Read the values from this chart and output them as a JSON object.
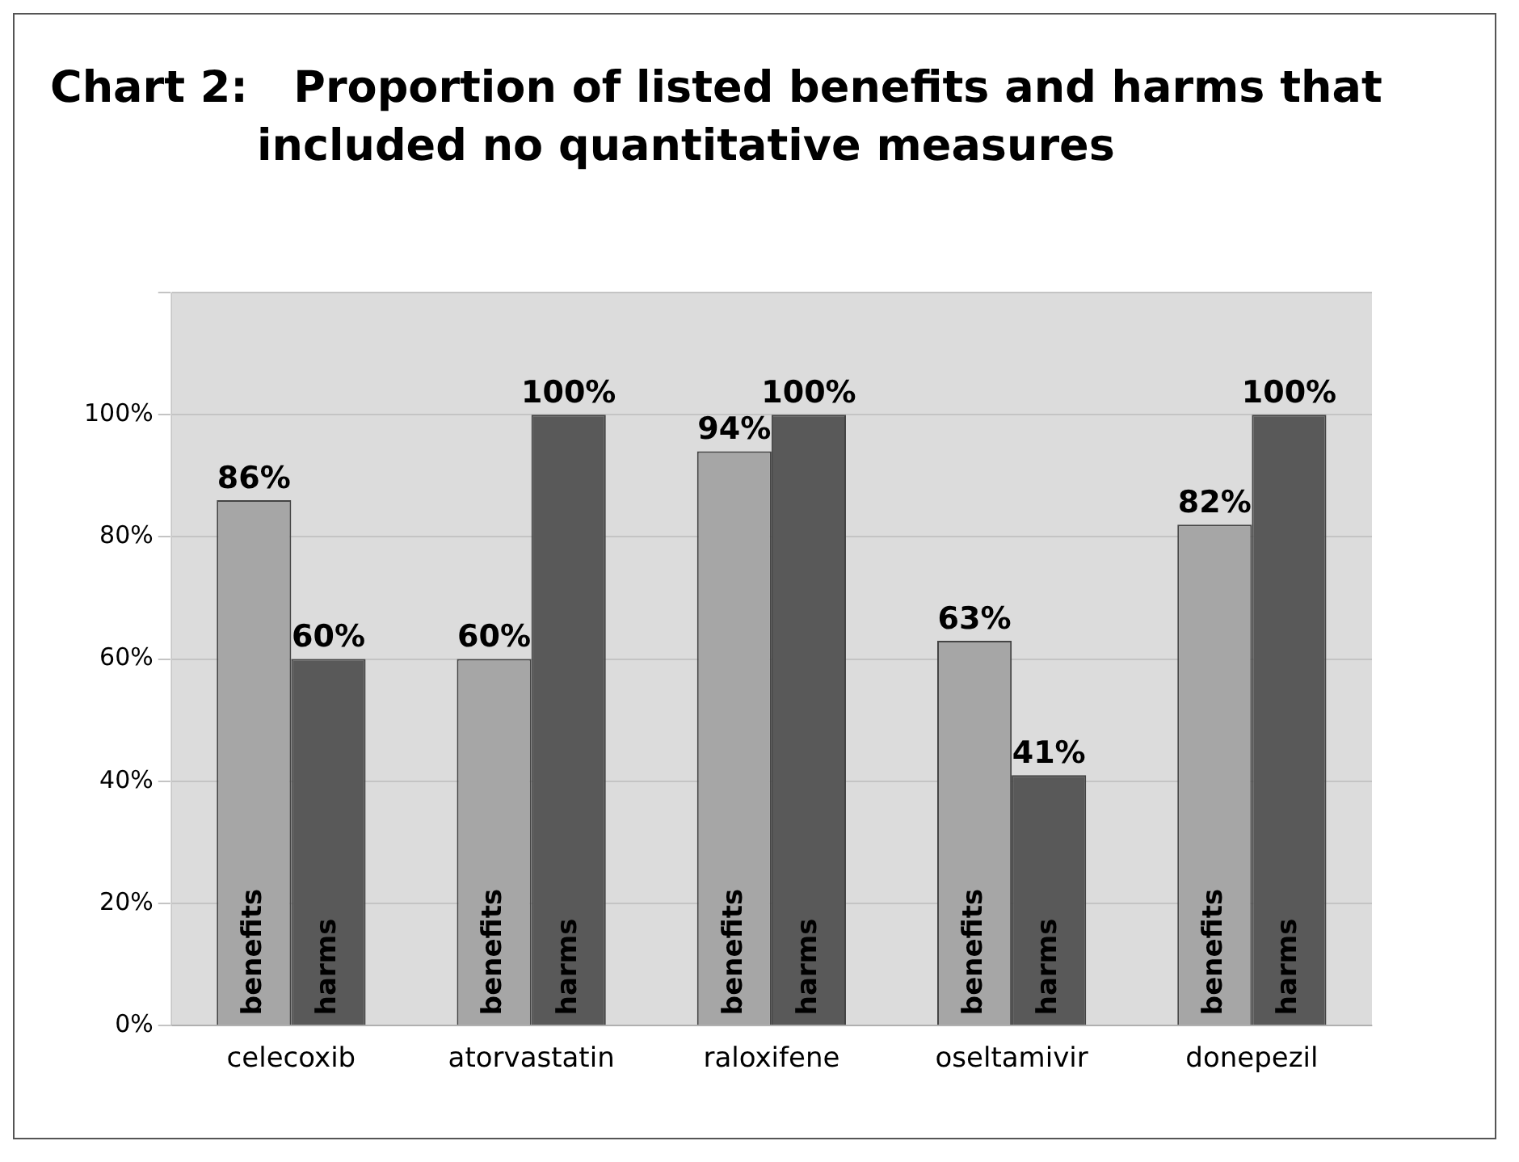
{
  "chart_data": {
    "type": "bar",
    "title": "Chart 2:   Proportion of listed benefits and harms that included no quantitative measures",
    "categories": [
      "celecoxib",
      "atorvastatin",
      "raloxifene",
      "oseltamivir",
      "donepezil"
    ],
    "series": [
      {
        "name": "benefits",
        "color": "#a6a6a6",
        "values": [
          86,
          60,
          94,
          63,
          82
        ],
        "value_labels": [
          "86%",
          "60%",
          "94%",
          "63%",
          "82%"
        ]
      },
      {
        "name": "harms",
        "color": "#595959",
        "values": [
          60,
          100,
          100,
          41,
          100
        ],
        "value_labels": [
          "60%",
          "100%",
          "100%",
          "41%",
          "100%"
        ]
      }
    ],
    "ylim": [
      0,
      120
    ],
    "yticks": [
      {
        "value": 0,
        "label": "0%"
      },
      {
        "value": 20,
        "label": "20%"
      },
      {
        "value": 40,
        "label": "40%"
      },
      {
        "value": 60,
        "label": "60%"
      },
      {
        "value": 80,
        "label": "80%"
      },
      {
        "value": 100,
        "label": "100%"
      },
      {
        "value": 120,
        "label": null
      }
    ],
    "grid": "y",
    "legend": false
  }
}
